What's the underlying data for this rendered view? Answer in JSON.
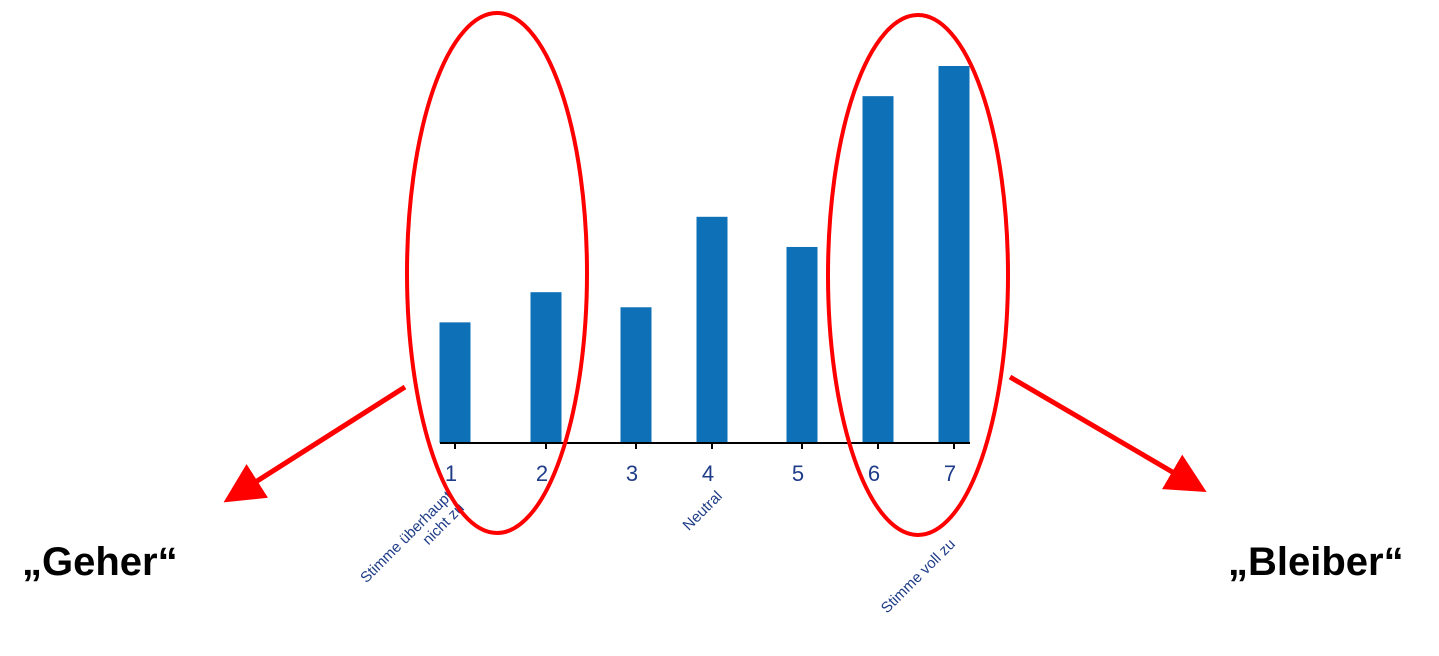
{
  "chart_data": {
    "type": "bar",
    "categories": [
      "1",
      "2",
      "3",
      "4",
      "5",
      "6",
      "7"
    ],
    "values": [
      4,
      5,
      4.5,
      7.5,
      6.5,
      11.5,
      12.5
    ],
    "ylim": [
      0,
      12.5
    ],
    "scale_labels": [
      {
        "text": "Stimme überhaupt\nnicht zu",
        "category": "1"
      },
      {
        "text": "Neutral",
        "category": "4"
      },
      {
        "text": "Stimme voll zu",
        "category": "7"
      }
    ],
    "bar_color": "#0e70b7",
    "tick_label_color": "#1f3c88"
  },
  "annotations": {
    "highlight_color": "#ff0000",
    "left_group": {
      "label": "„Geher“",
      "categories": [
        "1",
        "2"
      ]
    },
    "right_group": {
      "label": "„Bleiber“",
      "categories": [
        "6",
        "7"
      ]
    }
  }
}
